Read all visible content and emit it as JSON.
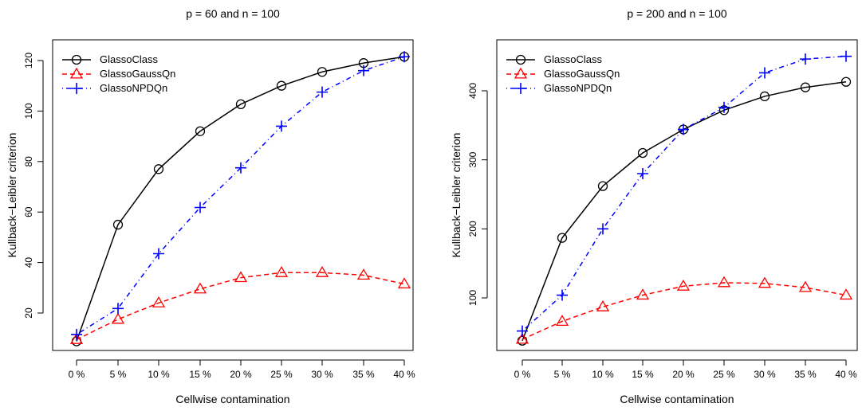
{
  "chart_data": [
    {
      "type": "line",
      "title": "p = 60 and n = 100",
      "xlabel": "Cellwise contamination",
      "ylabel": "Kullback−Leibler criterion",
      "categories": [
        "0 %",
        "5 %",
        "10 %",
        "15 %",
        "20 %",
        "25 %",
        "30 %",
        "35 %",
        "40 %"
      ],
      "ylim": [
        7,
        124
      ],
      "yticks": [
        "20",
        "40",
        "60",
        "80",
        "100",
        "120"
      ],
      "legend_position": "top-left",
      "grid": false,
      "series": [
        {
          "name": "GlassoClass",
          "color": "#000000",
          "dash": "solid",
          "marker": "circle",
          "values": [
            8.8,
            55,
            77,
            92,
            102.7,
            110,
            115.5,
            119,
            121.5
          ]
        },
        {
          "name": "GlassoGaussQn",
          "color": "#ff0000",
          "dash": "dashed",
          "marker": "triangle",
          "values": [
            9.5,
            17.5,
            24,
            29.5,
            34,
            36,
            36,
            35,
            31.5
          ]
        },
        {
          "name": "GlassoNPDQn",
          "color": "#0000ff",
          "dash": "dotdash",
          "marker": "plus",
          "values": [
            11.5,
            21.8,
            43.5,
            61.8,
            77.5,
            94,
            107.5,
            116,
            121.5
          ]
        }
      ]
    },
    {
      "type": "line",
      "title": "p = 200 and n = 100",
      "xlabel": "Cellwise contamination",
      "ylabel": "Kullback−Leibler criterion",
      "categories": [
        "0 %",
        "5 %",
        "10 %",
        "15 %",
        "20 %",
        "25 %",
        "30 %",
        "35 %",
        "40 %"
      ],
      "ylim": [
        35,
        460
      ],
      "yticks": [
        "100",
        "200",
        "300",
        "400"
      ],
      "legend_position": "top-left",
      "grid": false,
      "series": [
        {
          "name": "GlassoClass",
          "color": "#000000",
          "dash": "solid",
          "marker": "circle",
          "values": [
            38,
            187,
            262,
            310,
            344,
            372,
            392,
            405,
            413
          ]
        },
        {
          "name": "GlassoGaussQn",
          "color": "#ff0000",
          "dash": "dashed",
          "marker": "triangle",
          "values": [
            40,
            66,
            87,
            104,
            117,
            122,
            121,
            115,
            104
          ]
        },
        {
          "name": "GlassoNPDQn",
          "color": "#0000ff",
          "dash": "dotdash",
          "marker": "plus",
          "values": [
            52,
            104,
            200,
            280,
            344,
            376,
            426,
            446,
            450
          ]
        }
      ]
    }
  ]
}
